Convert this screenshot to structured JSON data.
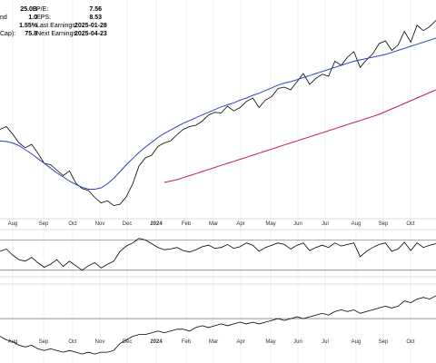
{
  "stats_left": [
    {
      "label": "",
      "value": "25.0B"
    },
    {
      "label": "nd",
      "value": "1.0"
    },
    {
      "label": "",
      "value": "1.55%"
    },
    {
      "label": "Cap):",
      "value": "75.8"
    }
  ],
  "stats_right": [
    {
      "label": "P/E:",
      "value": "7.56"
    },
    {
      "label": "EPS:",
      "value": "8.53"
    },
    {
      "label": "Last Earnings:",
      "value": "2025-01-28"
    },
    {
      "label": "Next Earnings:",
      "value": "2025-04-23"
    }
  ],
  "colors": {
    "price": "#000000",
    "ma_short": "#3040c0",
    "ma_long": "#c0203a",
    "grid": "#e6e6e6",
    "osc_fill": "#4a8a3a"
  },
  "chart_data": {
    "type": "line",
    "x_ticks": [
      "Aug",
      "Sep",
      "Oct",
      "Nov",
      "Dec",
      "2024",
      "Feb",
      "Mar",
      "Apr",
      "May",
      "Jun",
      "Jul",
      "Aug",
      "Sep",
      "Oct"
    ],
    "panels": [
      {
        "name": "price",
        "series": [
          {
            "color_key": "price",
            "values": [
              47.0,
              47.4,
              46.3,
              45.0,
              44.3,
              44.8,
              43.5,
              42.0,
              41.8,
              41.0,
              40.2,
              40.9,
              39.1,
              38.3,
              38.0,
              37.0,
              36.2,
              36.5,
              35.8,
              36.0,
              37.1,
              39.0,
              41.6,
              42.8,
              43.2,
              44.5,
              45.0,
              45.3,
              46.2,
              47.0,
              47.4,
              47.6,
              48.2,
              49.1,
              49.5,
              49.4,
              50.4,
              49.7,
              50.2,
              51.1,
              51.6,
              50.2,
              51.3,
              51.8,
              53.0,
              53.2,
              52.8,
              54.0,
              55.2,
              53.6,
              54.5,
              55.1,
              54.8,
              57.0,
              56.4,
              57.6,
              58.4,
              56.1,
              57.2,
              58.1,
              59.6,
              60.0,
              58.6,
              59.4,
              61.4,
              59.8,
              62.3,
              61.5,
              62.1,
              63.0
            ]
          },
          {
            "color_key": "ma_short",
            "values": [
              45.3,
              45.2,
              45.0,
              44.6,
              44.0,
              43.4,
              42.7,
              42.0,
              41.3,
              40.6,
              40.0,
              39.4,
              38.9,
              38.5,
              38.2,
              38.2,
              38.4,
              39.0,
              39.8,
              40.8,
              41.8,
              42.7,
              43.6,
              44.4,
              45.1,
              45.8,
              46.4,
              46.9,
              47.4,
              47.9,
              48.3,
              48.7,
              49.1,
              49.5,
              49.9,
              50.3,
              50.6,
              50.9,
              51.3,
              51.6,
              52.0,
              52.3,
              52.7,
              53.1,
              53.5,
              53.8,
              54.0,
              54.3,
              54.6,
              54.9,
              55.2,
              55.5,
              55.8,
              56.1,
              56.4,
              56.7,
              57.0,
              57.2,
              57.4,
              57.6,
              57.8,
              58.0,
              58.3,
              58.6,
              58.9,
              59.2,
              59.5,
              59.8,
              60.1,
              60.4
            ]
          },
          {
            "color_key": "ma_long",
            "values": [
              null,
              null,
              null,
              null,
              null,
              null,
              null,
              null,
              null,
              null,
              null,
              null,
              null,
              null,
              null,
              null,
              null,
              null,
              null,
              null,
              null,
              null,
              null,
              null,
              null,
              null,
              39.2,
              39.4,
              39.6,
              39.9,
              40.2,
              40.5,
              40.8,
              41.1,
              41.4,
              41.7,
              42.0,
              42.3,
              42.6,
              42.9,
              43.2,
              43.5,
              43.8,
              44.1,
              44.4,
              44.7,
              45.0,
              45.3,
              45.6,
              45.9,
              46.2,
              46.5,
              46.8,
              47.1,
              47.4,
              47.7,
              48.0,
              48.3,
              48.6,
              48.9,
              49.2,
              49.6,
              50.0,
              50.4,
              50.8,
              51.2,
              51.6,
              52.0,
              52.4,
              52.8
            ]
          }
        ],
        "ylim": [
          34,
          66
        ]
      },
      {
        "name": "oscillator",
        "series": [
          {
            "color_key": "price",
            "values": [
              55,
              58,
              50,
              44,
              42,
              47,
              40,
              34,
              38,
              44,
              35,
              42,
              36,
              30,
              36,
              40,
              33,
              38,
              42,
              55,
              62,
              66,
              72,
              70,
              65,
              60,
              57,
              58,
              60,
              56,
              54,
              57,
              61,
              63,
              59,
              60,
              64,
              59,
              61,
              66,
              63,
              55,
              60,
              63,
              66,
              64,
              58,
              63,
              66,
              56,
              60,
              63,
              60,
              66,
              62,
              64,
              66,
              48,
              55,
              60,
              64,
              66,
              55,
              58,
              67,
              56,
              66,
              60,
              63,
              65
            ]
          }
        ],
        "ylim": [
          25,
          80
        ],
        "levels": [
          70,
          30
        ]
      },
      {
        "name": "relative",
        "series": [
          {
            "color_key": "price",
            "values": [
              30,
              28,
              27,
              25,
              24,
              25,
              23,
              22,
              23,
              22,
              21,
              22,
              21,
              20,
              21,
              20,
              21,
              21,
              22,
              26,
              28,
              30,
              31,
              31,
              32,
              33,
              32,
              33,
              34,
              34,
              33,
              35,
              36,
              35,
              36,
              37,
              36,
              37,
              38,
              37,
              38,
              37,
              38,
              39,
              40,
              39,
              40,
              41,
              40,
              41,
              42,
              43,
              42,
              44,
              45,
              44,
              45,
              43,
              44,
              45,
              46,
              47,
              46,
              47,
              50,
              49,
              51,
              52,
              51,
              53
            ]
          }
        ],
        "ylim": [
          18,
          58
        ],
        "levels": [
          40
        ]
      }
    ]
  }
}
